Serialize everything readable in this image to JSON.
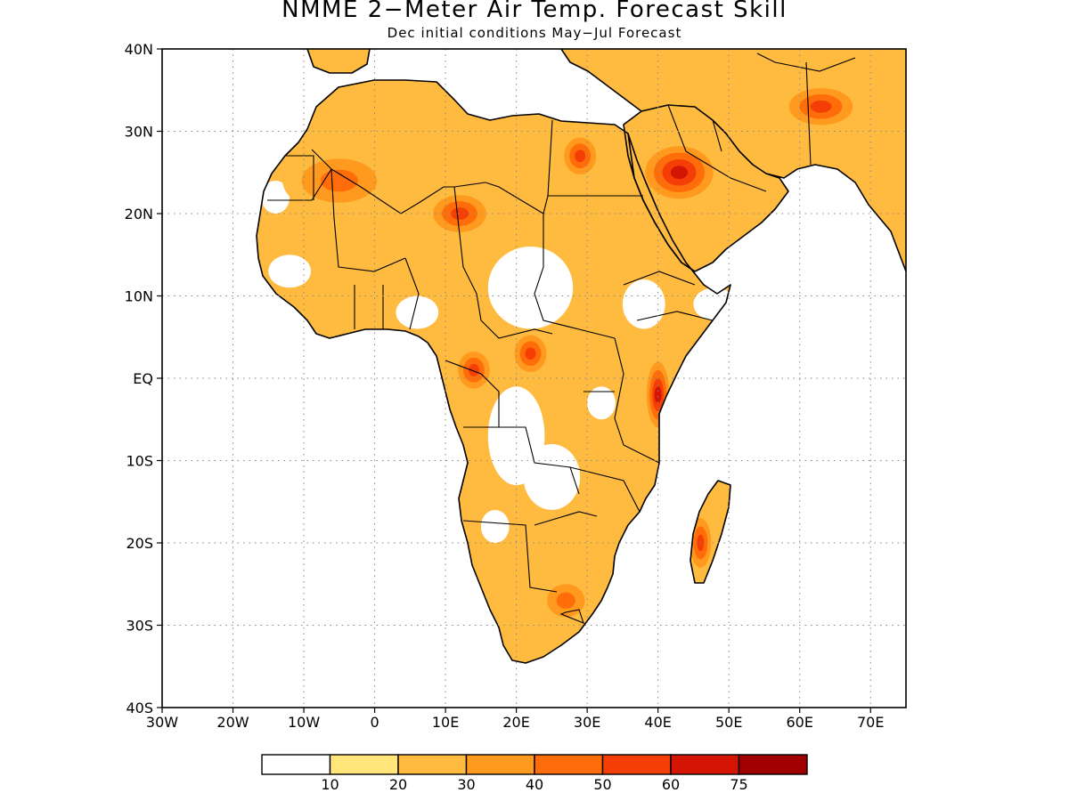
{
  "title": "NMME 2−Meter Air Temp. Forecast Skill",
  "subtitle": "Dec initial conditions   May−Jul Forecast",
  "map": {
    "region": "Africa and the Arabian Peninsula",
    "projection": "equirectangular",
    "lon_range": [
      -30,
      75
    ],
    "lat_range": [
      -40,
      40
    ],
    "x_ticks": [
      {
        "value": -30,
        "label": "30W"
      },
      {
        "value": -20,
        "label": "20W"
      },
      {
        "value": -10,
        "label": "10W"
      },
      {
        "value": 0,
        "label": "0"
      },
      {
        "value": 10,
        "label": "10E"
      },
      {
        "value": 20,
        "label": "20E"
      },
      {
        "value": 30,
        "label": "30E"
      },
      {
        "value": 40,
        "label": "40E"
      },
      {
        "value": 50,
        "label": "50E"
      },
      {
        "value": 60,
        "label": "60E"
      },
      {
        "value": 70,
        "label": "70E"
      }
    ],
    "y_ticks": [
      {
        "value": 40,
        "label": "40N"
      },
      {
        "value": 30,
        "label": "30N"
      },
      {
        "value": 20,
        "label": "20N"
      },
      {
        "value": 10,
        "label": "10N"
      },
      {
        "value": 0,
        "label": "EQ"
      },
      {
        "value": -10,
        "label": "10S"
      },
      {
        "value": -20,
        "label": "20S"
      },
      {
        "value": -30,
        "label": "30S"
      },
      {
        "value": -40,
        "label": "40S"
      }
    ],
    "grid": "dotted"
  },
  "colorbar": {
    "colors": [
      "#ffffff",
      "#ffe57a",
      "#ffbb3f",
      "#ff9a1e",
      "#ff6d0a",
      "#f53e06",
      "#d51504",
      "#a00000"
    ],
    "labels": [
      "10",
      "20",
      "30",
      "40",
      "50",
      "60",
      "75"
    ]
  },
  "land_color": "#ffffff",
  "ocean_color": "#ffffff",
  "outline_color": "#000000",
  "regions": [
    {
      "name": "Sahara west",
      "category": 4,
      "lon": -5,
      "lat": 24,
      "rx": 8,
      "ry": 4
    },
    {
      "name": "Sahara central",
      "category": 5,
      "lon": 12,
      "lat": 20,
      "rx": 5,
      "ry": 3
    },
    {
      "name": "Egypt",
      "category": 5,
      "lon": 29,
      "lat": 27,
      "rx": 3,
      "ry": 3
    },
    {
      "name": "Arabia",
      "category": 6,
      "lon": 43,
      "lat": 25,
      "rx": 6,
      "ry": 4
    },
    {
      "name": "Iran",
      "category": 5,
      "lon": 63,
      "lat": 33,
      "rx": 6,
      "ry": 3
    },
    {
      "name": "Congo basin",
      "category": 5,
      "lon": 14,
      "lat": 1,
      "rx": 3,
      "ry": 3
    },
    {
      "name": "Central African Republic",
      "category": 5,
      "lon": 22,
      "lat": 3,
      "rx": 3,
      "ry": 3
    },
    {
      "name": "East Africa coast",
      "category": 6,
      "lon": 40,
      "lat": -2,
      "rx": 2,
      "ry": 5
    },
    {
      "name": "Madagascar",
      "category": 5,
      "lon": 46,
      "lat": -20,
      "rx": 2,
      "ry": 4
    },
    {
      "name": "South Africa",
      "category": 4,
      "lon": 27,
      "lat": -27,
      "rx": 4,
      "ry": 3
    }
  ]
}
